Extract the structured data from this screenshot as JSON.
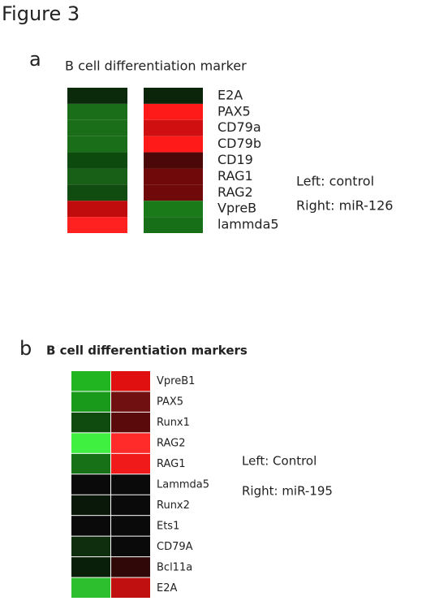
{
  "figure_title": "Figure 3",
  "panels": [
    {
      "type": "heatmap",
      "label": "a",
      "title": "B cell differentiation marker",
      "rows": [
        "E2A",
        "PAX5",
        "CD79a",
        "CD79b",
        "CD19",
        "RAG1",
        "RAG2",
        "VpreB",
        "lammda5"
      ],
      "colors": [
        [
          "#0b2a0b",
          "#0a250a"
        ],
        [
          "#1a6e1a",
          "#ff1a1a"
        ],
        [
          "#1a6e1a",
          "#d01010"
        ],
        [
          "#1a6e1a",
          "#ff1a1a"
        ],
        [
          "#0d4a0d",
          "#4a0808"
        ],
        [
          "#186018",
          "#700a0a"
        ],
        [
          "#104c10",
          "#700a0a"
        ],
        [
          "#c00c0c",
          "#1a7a1a"
        ],
        [
          "#ff2020",
          "#177017"
        ]
      ],
      "legend": [
        "Left: control",
        "Right: miR-126"
      ]
    },
    {
      "type": "heatmap",
      "label": "b",
      "title": "B cell differentiation markers",
      "rows": [
        "VpreB1",
        "PAX5",
        "Runx1",
        "RAG2",
        "RAG1",
        "Lammda5",
        "Runx2",
        "Ets1",
        "CD79A",
        "Bcl11a",
        "E2A"
      ],
      "colors": [
        [
          "#22b522",
          "#e01010"
        ],
        [
          "#1a9a1a",
          "#701010"
        ],
        [
          "#0f4a0f",
          "#5a0a0a"
        ],
        [
          "#40f040",
          "#ff2a2a"
        ],
        [
          "#177217",
          "#f01a1a"
        ],
        [
          "#0a0a0a",
          "#0a0a0a"
        ],
        [
          "#0a180a",
          "#0a0a0a"
        ],
        [
          "#0a0a0a",
          "#0a0a0a"
        ],
        [
          "#0e2e0e",
          "#0a0a0a"
        ],
        [
          "#0a1f0a",
          "#300808"
        ],
        [
          "#2ebf2e",
          "#c01010"
        ]
      ],
      "legend": [
        "Left: Control",
        "Right: miR-195"
      ]
    }
  ]
}
